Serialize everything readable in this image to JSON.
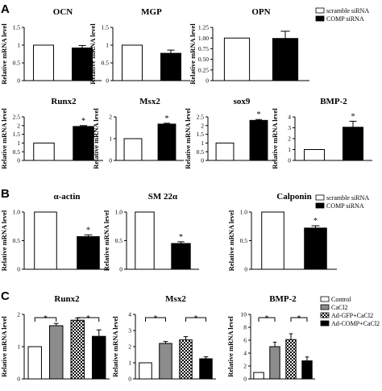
{
  "panels": [
    "A",
    "B",
    "C"
  ],
  "chart_data": [
    {
      "type": "bar",
      "panel": "A",
      "title": "OCN",
      "ylabel": "Relative mRNA level",
      "ylim": [
        0,
        1.5
      ],
      "ticks": [
        "0",
        "0.5",
        "1",
        "1.5"
      ],
      "categories": [
        "scramble siRNA",
        "COMP siRNA"
      ],
      "values": [
        1.0,
        0.92
      ],
      "errors": [
        0,
        0.07
      ],
      "significance": []
    },
    {
      "type": "bar",
      "panel": "A",
      "title": "MGP",
      "ylabel": "Relative mRNA level",
      "ylim": [
        0,
        1.5
      ],
      "ticks": [
        "0",
        "0.5",
        "1",
        "1.5"
      ],
      "categories": [
        "scramble siRNA",
        "COMP siRNA"
      ],
      "values": [
        1.0,
        0.77
      ],
      "errors": [
        0,
        0.09
      ],
      "significance": []
    },
    {
      "type": "bar",
      "panel": "A",
      "title": "OPN",
      "ylabel": "Relative mRNA level",
      "ylim": [
        0,
        1.25
      ],
      "ticks": [
        "0",
        "0.25",
        "0.50",
        "0.75",
        "1.00",
        "1.25"
      ],
      "categories": [
        "scramble siRNA",
        "COMP siRNA"
      ],
      "values": [
        1.0,
        0.99
      ],
      "errors": [
        0,
        0.17
      ],
      "significance": [],
      "legend": [
        "scramble siRNA",
        "COMP siRNA"
      ]
    },
    {
      "type": "bar",
      "panel": "A",
      "title": "Runx2",
      "ylabel": "Relative mRNA level",
      "ylim": [
        0,
        2.5
      ],
      "ticks": [
        "0",
        "0.5",
        "1",
        "1.5",
        "2",
        "2.5"
      ],
      "categories": [
        "scramble siRNA",
        "COMP siRNA"
      ],
      "values": [
        1.0,
        1.95
      ],
      "errors": [
        0,
        0.05
      ],
      "significance": [
        "",
        "*"
      ]
    },
    {
      "type": "bar",
      "panel": "A",
      "title": "Msx2",
      "ylabel": "Relative mRNA level",
      "ylim": [
        0,
        2
      ],
      "ticks": [
        "0",
        "1",
        "2"
      ],
      "categories": [
        "scramble siRNA",
        "COMP siRNA"
      ],
      "values": [
        1.0,
        1.67
      ],
      "errors": [
        0,
        0.04
      ],
      "significance": [
        "",
        "*"
      ]
    },
    {
      "type": "bar",
      "panel": "A",
      "title": "sox9",
      "ylabel": "Relative mRNA level",
      "ylim": [
        0,
        2.5
      ],
      "ticks": [
        "0",
        "0.5",
        "1",
        "1.5",
        "2",
        "2.5"
      ],
      "categories": [
        "scramble siRNA",
        "COMP siRNA"
      ],
      "values": [
        1.0,
        2.3
      ],
      "errors": [
        0,
        0.05
      ],
      "significance": [
        "",
        "*"
      ]
    },
    {
      "type": "bar",
      "panel": "A",
      "title": "BMP-2",
      "ylabel": "Relative mRNA level",
      "ylim": [
        0,
        4
      ],
      "ticks": [
        "0",
        "1",
        "2",
        "3",
        "4"
      ],
      "categories": [
        "scramble siRNA",
        "COMP siRNA"
      ],
      "values": [
        1.0,
        3.05
      ],
      "errors": [
        0,
        0.55
      ],
      "significance": [
        "",
        "*"
      ]
    },
    {
      "type": "bar",
      "panel": "B",
      "title": "α-actin",
      "ylabel": "Relative mRNA level",
      "ylim": [
        0,
        1.0
      ],
      "ticks": [
        "0",
        "0.5",
        "1.0"
      ],
      "categories": [
        "scramble siRNA",
        "COMP siRNA"
      ],
      "values": [
        1.0,
        0.57
      ],
      "errors": [
        0,
        0.03
      ],
      "significance": [
        "",
        "*"
      ]
    },
    {
      "type": "bar",
      "panel": "B",
      "title": "SM 22α",
      "ylabel": "Relative mRNA level",
      "ylim": [
        0,
        1.0
      ],
      "ticks": [
        "0",
        "0.5",
        "1.0"
      ],
      "categories": [
        "scramble siRNA",
        "COMP siRNA"
      ],
      "values": [
        1.0,
        0.45
      ],
      "errors": [
        0,
        0.03
      ],
      "significance": [
        "",
        "*"
      ]
    },
    {
      "type": "bar",
      "panel": "B",
      "title": "Calponin",
      "ylabel": "Relative mRNA level",
      "ylim": [
        0,
        1.0
      ],
      "ticks": [
        "0",
        "0.5",
        "1.0"
      ],
      "categories": [
        "scramble siRNA",
        "COMP siRNA"
      ],
      "values": [
        1.0,
        0.72
      ],
      "errors": [
        0,
        0.04
      ],
      "significance": [
        "",
        "*"
      ]
    },
    {
      "type": "bar",
      "panel": "C",
      "title": "Runx2",
      "ylabel": "Relative mRNA level",
      "ylim": [
        0,
        2
      ],
      "ticks": [
        "0",
        "1",
        "2"
      ],
      "categories": [
        "Control",
        "CaCl2",
        "Ad-GFP+CaCl2",
        "Ad-COMP+CaCl2"
      ],
      "values": [
        1.0,
        1.65,
        1.82,
        1.32
      ],
      "errors": [
        0,
        0.07,
        0.07,
        0.2
      ],
      "brackets": [
        [
          0,
          1
        ],
        [
          2,
          3
        ]
      ]
    },
    {
      "type": "bar",
      "panel": "C",
      "title": "Msx2",
      "ylabel": "Relative mRNA level",
      "ylim": [
        0,
        4
      ],
      "ticks": [
        "0",
        "1",
        "2",
        "3",
        "4"
      ],
      "categories": [
        "Control",
        "CaCl2",
        "Ad-GFP+CaCl2",
        "Ad-COMP+CaCl2"
      ],
      "values": [
        1.0,
        2.2,
        2.42,
        1.25
      ],
      "errors": [
        0,
        0.12,
        0.2,
        0.12
      ],
      "brackets": [
        [
          0,
          1
        ],
        [
          2,
          3
        ]
      ]
    },
    {
      "type": "bar",
      "panel": "C",
      "title": "BMP-2",
      "ylabel": "Relative mRNA level",
      "ylim": [
        0,
        10
      ],
      "ticks": [
        "0",
        "2",
        "4",
        "6",
        "8",
        "10"
      ],
      "categories": [
        "Control",
        "CaCl2",
        "Ad-GFP+CaCl2",
        "Ad-COMP+CaCl2"
      ],
      "values": [
        1.0,
        5.0,
        6.1,
        2.8
      ],
      "errors": [
        0,
        0.7,
        0.9,
        0.6
      ],
      "brackets": [
        [
          0,
          1
        ],
        [
          2,
          3
        ]
      ],
      "legend": [
        "Control",
        "CaCl2",
        "Ad-GFP+CaCl2",
        "Ad-COMP+CaCl2"
      ]
    }
  ]
}
